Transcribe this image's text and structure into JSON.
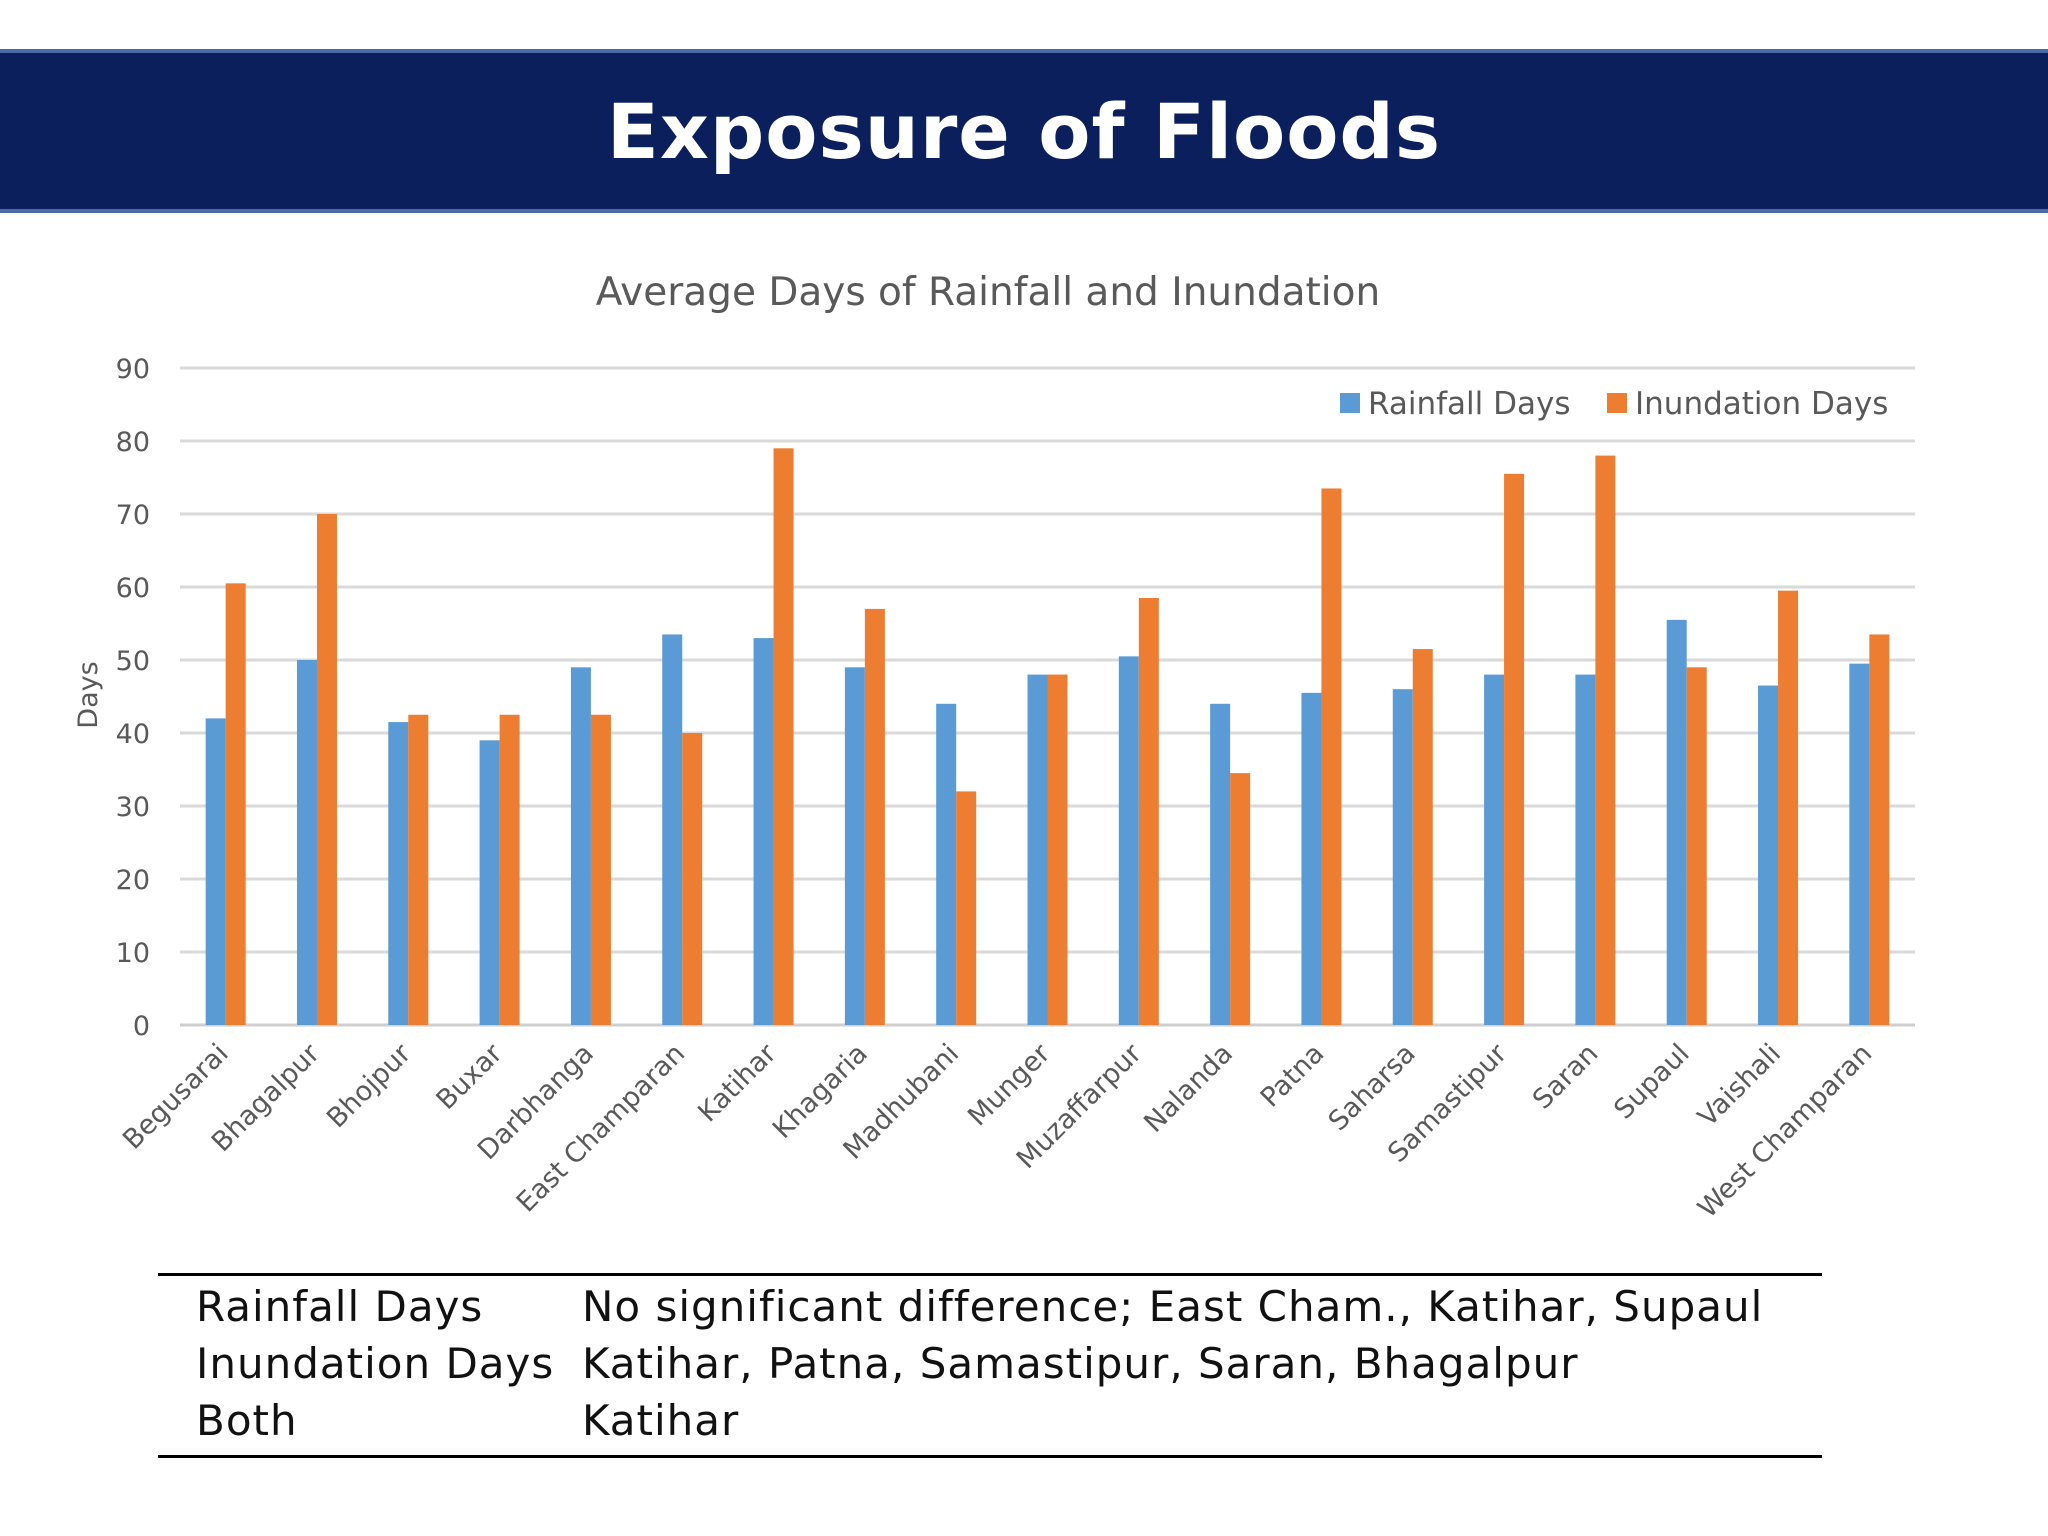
{
  "header": {
    "title": "Exposure of Floods"
  },
  "chart_data": {
    "type": "bar",
    "title": "Average Days of Rainfall and Inundation",
    "xlabel": "",
    "ylabel": "Days",
    "ylim": [
      0,
      90
    ],
    "yticks": [
      0,
      10,
      20,
      30,
      40,
      50,
      60,
      70,
      80,
      90
    ],
    "grid": true,
    "legend_position": "top-right",
    "categories": [
      "Begusarai",
      "Bhagalpur",
      "Bhojpur",
      "Buxar",
      "Darbhanga",
      "East Champaran",
      "Katihar",
      "Khagaria",
      "Madhubani",
      "Munger",
      "Muzaffarpur",
      "Nalanda",
      "Patna",
      "Saharsa",
      "Samastipur",
      "Saran",
      "Supaul",
      "Vaishali",
      "West Champaran"
    ],
    "series": [
      {
        "name": "Rainfall Days",
        "color": "#5b9bd5",
        "values": [
          42,
          50,
          41.5,
          39,
          49,
          53.5,
          53,
          49,
          44,
          48,
          50.5,
          44,
          45.5,
          46,
          48,
          48,
          55.5,
          46.5,
          49.5
        ]
      },
      {
        "name": "Inundation Days",
        "color": "#ed7d31",
        "values": [
          60.5,
          70,
          42.5,
          42.5,
          42.5,
          40,
          79,
          57,
          32,
          48,
          58.5,
          34.5,
          73.5,
          51.5,
          75.5,
          78,
          49,
          59.5,
          53.5
        ]
      }
    ]
  },
  "summary": {
    "rows": [
      {
        "label": "Rainfall Days",
        "value": "No significant difference; East Cham., Katihar, Supaul"
      },
      {
        "label": "Inundation Days",
        "value": "Katihar, Patna, Samastipur, Saran, Bhagalpur"
      },
      {
        "label": "Both",
        "value": "Katihar"
      }
    ]
  }
}
